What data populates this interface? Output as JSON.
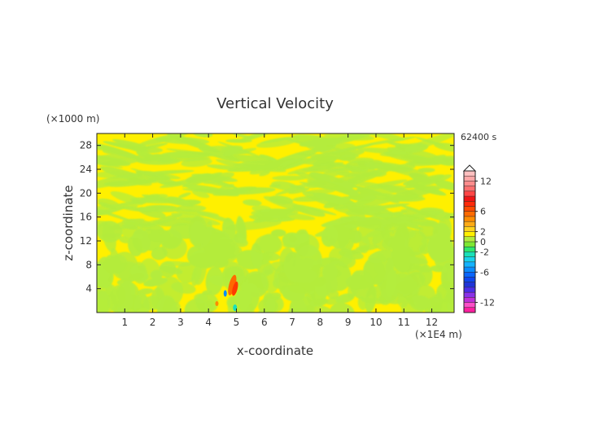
{
  "chart_data": {
    "type": "heatmap",
    "title": "Vertical Velocity",
    "time_label": "62400 s",
    "xlabel": "x-coordinate",
    "ylabel": "z-coordinate",
    "x_unit": "(×1E4 m)",
    "y_unit": "(×1000 m)",
    "xlim": [
      0,
      12.8
    ],
    "ylim": [
      0,
      30
    ],
    "x_ticks": [
      "1",
      "2",
      "3",
      "4",
      "5",
      "6",
      "7",
      "8",
      "9",
      "10",
      "11",
      "12"
    ],
    "y_ticks": [
      "4",
      "8",
      "12",
      "16",
      "20",
      "24",
      "28"
    ],
    "colorbar": {
      "tick_labels": [
        "12",
        "6",
        "2",
        "0",
        "-2",
        "-6",
        "-12"
      ],
      "levels": [
        -14,
        -13,
        -12,
        -11,
        -10,
        -9,
        -8,
        -7,
        -6,
        -5,
        -4,
        -3,
        -2,
        -1,
        0,
        1,
        2,
        3,
        4,
        5,
        6,
        7,
        8,
        9,
        10,
        11,
        12,
        13,
        14
      ],
      "colors": [
        "#ff1fa0",
        "#ff4fc8",
        "#c030d8",
        "#8a32e8",
        "#4b2ee8",
        "#1f34d8",
        "#0f46ee",
        "#0a66ff",
        "#0a8cff",
        "#13b3ff",
        "#19d2ea",
        "#19e0b8",
        "#2ee86c",
        "#7ee832",
        "#b4ec3c",
        "#fff000",
        "#ffd21e",
        "#ffaa14",
        "#ff8c00",
        "#ff6a00",
        "#ff4a00",
        "#ff2a0a",
        "#f01414",
        "#ff4646",
        "#ff6e6e",
        "#ff8c8c",
        "#ffa8a8",
        "#ffc0c0"
      ]
    },
    "field_description_colors": {
      "dominant_low": "#b4ec3c",
      "dominant_high": "#fff000",
      "updraft": "#ff6a00",
      "downdraft": "#19e0b8"
    }
  }
}
